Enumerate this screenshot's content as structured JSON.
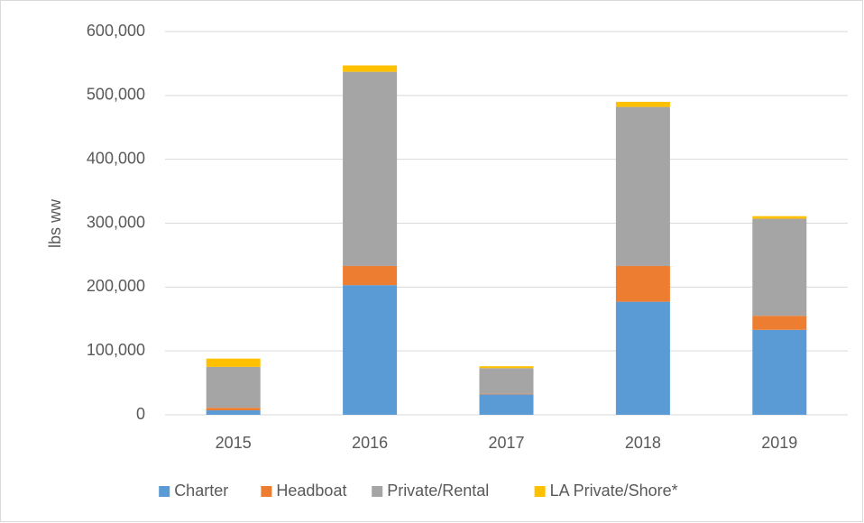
{
  "chart_data": {
    "type": "stacked_bar",
    "y_label": "lbs ww",
    "categories": [
      "2015",
      "2016",
      "2017",
      "2018",
      "2019"
    ],
    "series": [
      {
        "name": "Charter",
        "color": "#5b9bd5",
        "values": [
          7000,
          203000,
          32000,
          177000,
          133000
        ]
      },
      {
        "name": "Headboat",
        "color": "#ed7d31",
        "values": [
          4000,
          30000,
          1000,
          56000,
          22000
        ]
      },
      {
        "name": "Private/Rental",
        "color": "#a5a5a5",
        "values": [
          64000,
          304000,
          40000,
          249000,
          152000
        ]
      },
      {
        "name": "LA Private/Shore*",
        "color": "#ffc000",
        "values": [
          13000,
          10000,
          3000,
          8000,
          4000
        ]
      }
    ],
    "ylim": [
      0,
      600000
    ],
    "yticks": [
      0,
      {
        "value": 100000,
        "label": "100,000"
      },
      {
        "value": 200000,
        "label": "200,000"
      },
      {
        "value": 300000,
        "label": "300,000"
      },
      {
        "value": 400000,
        "label": "400,000"
      },
      {
        "value": 500000,
        "label": "500,000"
      },
      {
        "value": 600000,
        "label": "600,000"
      }
    ],
    "grid": true,
    "legend": "bottom"
  }
}
